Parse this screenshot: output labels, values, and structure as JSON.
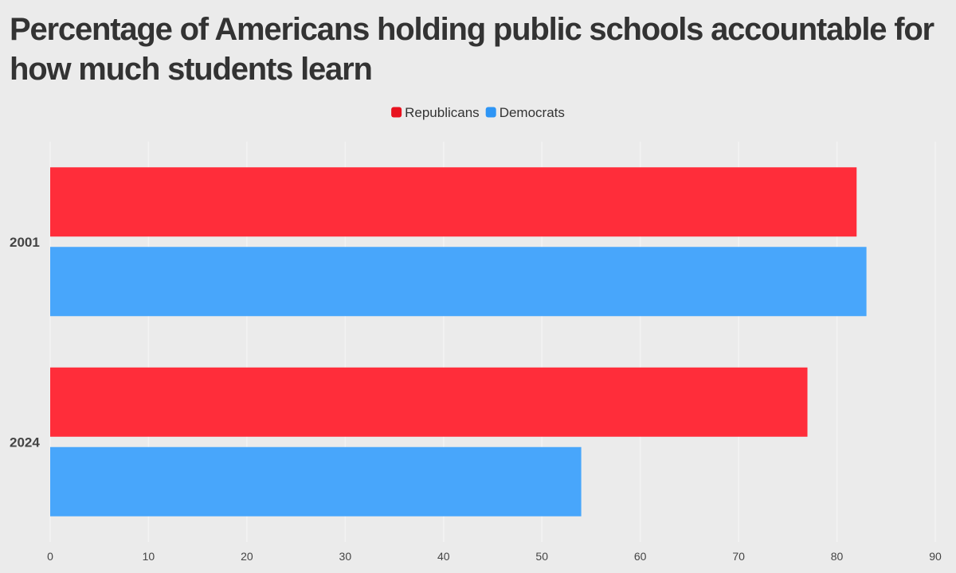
{
  "chart_data": {
    "type": "bar",
    "orientation": "horizontal",
    "title": "Percentage of Americans holding public schools accountable for how much students learn",
    "categories": [
      "2001",
      "2024"
    ],
    "series": [
      {
        "name": "Republicans",
        "color": "#ff2d3a",
        "values": [
          82,
          77
        ]
      },
      {
        "name": "Democrats",
        "color": "#48a6fb",
        "values": [
          83,
          54
        ]
      }
    ],
    "xlim": [
      0,
      90
    ],
    "xticks": [
      0,
      10,
      20,
      30,
      40,
      50,
      60,
      70,
      80,
      90
    ],
    "xlabel": "",
    "ylabel": "",
    "grid": true,
    "legend_position": "top-center",
    "legend_swatch_colors": [
      "#e8121f",
      "#2e95f5"
    ]
  }
}
